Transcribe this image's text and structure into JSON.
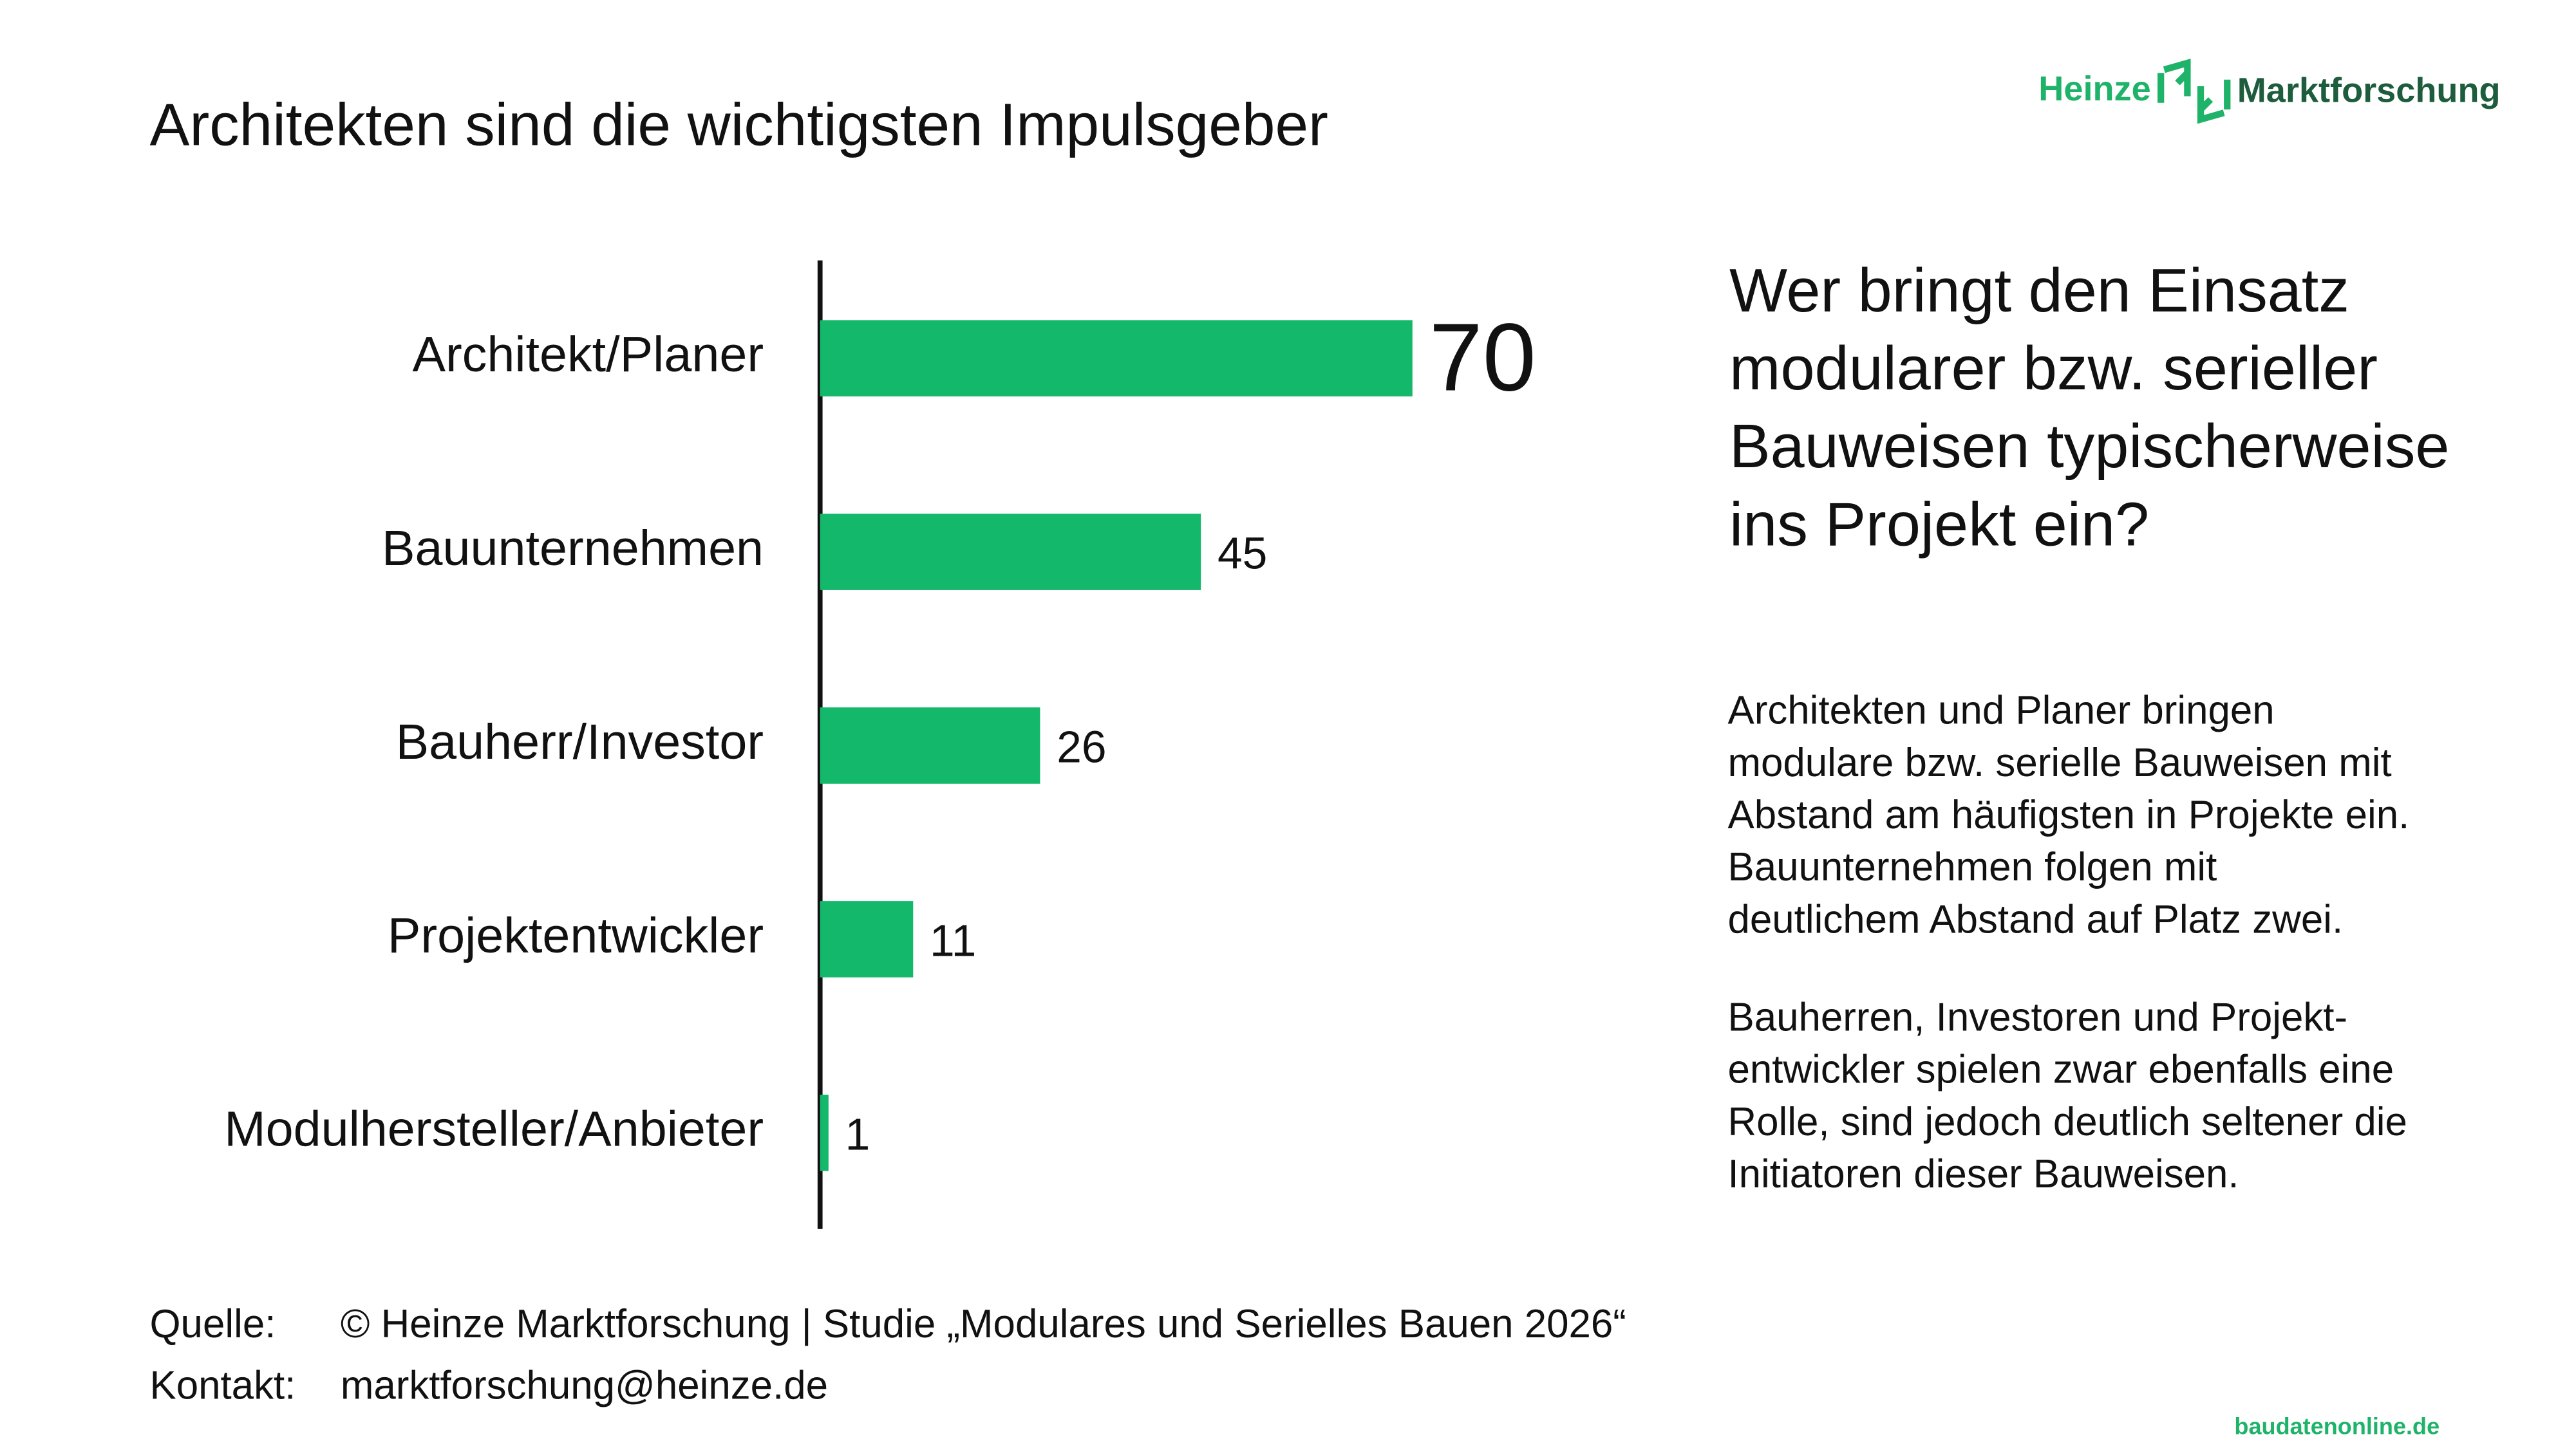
{
  "header": {
    "title": "Architekten sind die wichtigsten Impulsgeber",
    "logo": {
      "brand": "Heinze",
      "product": "Marktforschung"
    }
  },
  "chart_data": {
    "type": "bar",
    "categories": [
      "Architekt/Planer",
      "Bauunternehmen",
      "Bauherr/Investor",
      "Projektentwickler",
      "Modulhersteller/Anbieter"
    ],
    "values": [
      70,
      45,
      26,
      11,
      1
    ],
    "color": "#13b86b"
  },
  "question": [
    "Wer bringt den Einsatz",
    "modularer bzw. serieller",
    "Bauweisen typischerweise",
    "ins Projekt ein?"
  ],
  "summary": [
    [
      "Architekten und Planer bringen",
      "modulare bzw. serielle Bauweisen mit",
      "Abstand am häufigsten in Projekte ein.",
      "Bauunternehmen folgen mit",
      "deutlichem Abstand auf Platz zwei."
    ],
    [
      "Bauherren, Investoren und Projekt-",
      "entwickler spielen zwar ebenfalls eine",
      "Rolle, sind jedoch deutlich seltener die",
      "Initiatoren dieser Bauweisen."
    ]
  ],
  "footer": {
    "source_label": "Quelle:",
    "source": "© Heinze Marktforschung | Studie „Modulares und Serielles Bauen 2026“",
    "contact_label": "Kontakt:",
    "contact": "marktforschung@heinze.de"
  },
  "watermark": "baudatenonline.de"
}
